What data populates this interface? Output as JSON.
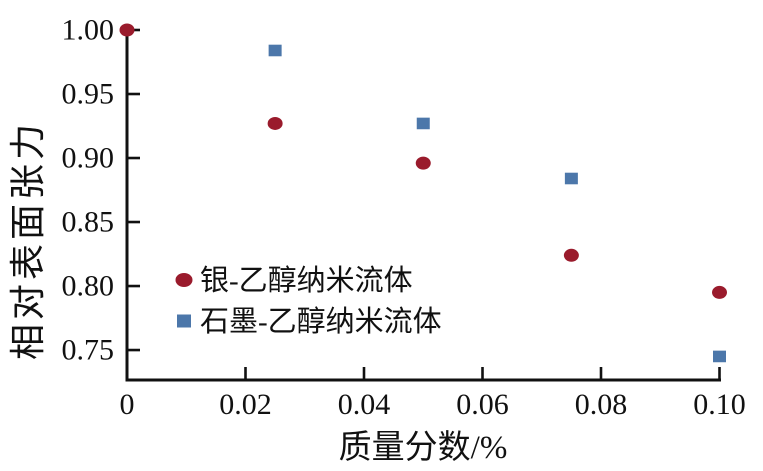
{
  "chart_data": {
    "type": "scatter",
    "title": "",
    "xlabel": "质量分数/%",
    "ylabel": "相对表面张力",
    "xlim": [
      0,
      0.1
    ],
    "ylim": [
      0.7266,
      1.0
    ],
    "grid": false,
    "legend_position": "inside-lower-left",
    "axis_color": "#111111",
    "background": "#ffffff",
    "x_ticks": [
      0,
      0.02,
      0.04,
      0.06,
      0.08,
      0.1
    ],
    "x_tick_labels": [
      "0",
      "0.02",
      "0.04",
      "0.06",
      "0.08",
      "0.10"
    ],
    "y_ticks": [
      1.0,
      0.95,
      0.9,
      0.85,
      0.8,
      0.75
    ],
    "y_tick_labels": [
      "1.00",
      "0.95",
      "0.90",
      "0.85",
      "0.80",
      "0.75"
    ],
    "series": [
      {
        "name": "银-乙醇纳米流体",
        "marker": "circle",
        "color": "#9a1b2c",
        "points": [
          [
            0,
            1.0
          ],
          [
            0.025,
            0.927
          ],
          [
            0.05,
            0.896
          ],
          [
            0.075,
            0.824
          ],
          [
            0.1,
            0.795
          ]
        ]
      },
      {
        "name": "石墨-乙醇纳米流体",
        "marker": "square",
        "color": "#4c77aa",
        "points": [
          [
            0.025,
            0.984
          ],
          [
            0.05,
            0.927
          ],
          [
            0.075,
            0.884
          ],
          [
            0.1,
            0.745
          ]
        ]
      }
    ]
  }
}
